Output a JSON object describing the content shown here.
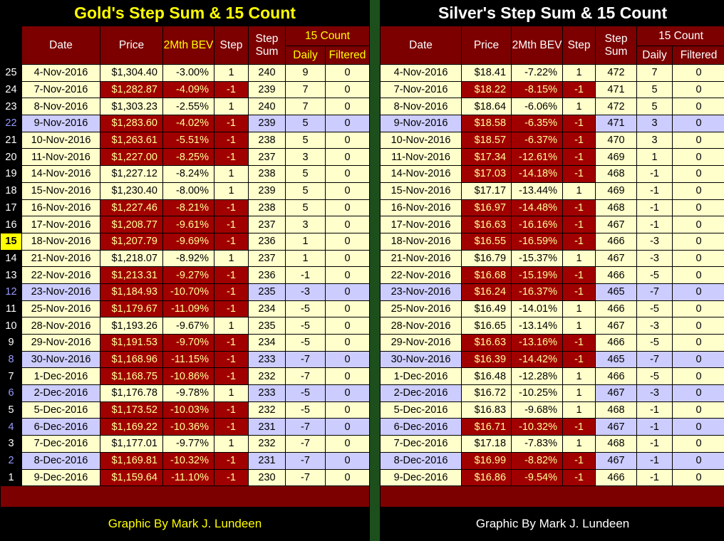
{
  "colors": {
    "background": "#000000",
    "header_red": "#7C0000",
    "down_cell_red": "#A00000",
    "down_cell_text": "#FFFF99",
    "row_cream": "#FFFFCC",
    "row_blue": "#CCCCFF",
    "gold_accent": "#FFFF00",
    "silver_text": "#FFFFFF",
    "divider_green": "#1C4F1C",
    "row_number_blue": "#9999FF",
    "highlight_yellow": "#FFFF00"
  },
  "header_labels": {
    "date": "Date",
    "price": "Price",
    "bev": "2Mth BEV",
    "step": "Step",
    "sum": "Step Sum",
    "count15": "15 Count",
    "daily": "Daily",
    "filtered": "Filtered"
  },
  "chart_data": [
    {
      "type": "table",
      "title": "Gold's Step Sum & 15 Count",
      "credit": "Graphic By Mark J. Lundeen",
      "columns": [
        "Row #",
        "Date",
        "Price",
        "2Mth BEV",
        "Step",
        "Step Sum",
        "15 Count Daily",
        "15 Count Filtered"
      ],
      "highlighted_row_number": "15",
      "rows": [
        {
          "n": "25",
          "date": "4-Nov-2016",
          "price": "$1,304.40",
          "bev": "-3.00%",
          "step": "1",
          "sum": "240",
          "daily": "9",
          "filtered": "0"
        },
        {
          "n": "24",
          "date": "7-Nov-2016",
          "price": "$1,282.87",
          "bev": "-4.09%",
          "step": "-1",
          "sum": "239",
          "daily": "7",
          "filtered": "0"
        },
        {
          "n": "23",
          "date": "8-Nov-2016",
          "price": "$1,303.23",
          "bev": "-2.55%",
          "step": "1",
          "sum": "240",
          "daily": "7",
          "filtered": "0"
        },
        {
          "n": "22",
          "date": "9-Nov-2016",
          "price": "$1,283.60",
          "bev": "-4.02%",
          "step": "-1",
          "sum": "239",
          "daily": "5",
          "filtered": "0",
          "tint": "blue"
        },
        {
          "n": "21",
          "date": "10-Nov-2016",
          "price": "$1,263.61",
          "bev": "-5.51%",
          "step": "-1",
          "sum": "238",
          "daily": "5",
          "filtered": "0"
        },
        {
          "n": "20",
          "date": "11-Nov-2016",
          "price": "$1,227.00",
          "bev": "-8.25%",
          "step": "-1",
          "sum": "237",
          "daily": "3",
          "filtered": "0"
        },
        {
          "n": "19",
          "date": "14-Nov-2016",
          "price": "$1,227.12",
          "bev": "-8.24%",
          "step": "1",
          "sum": "238",
          "daily": "5",
          "filtered": "0"
        },
        {
          "n": "18",
          "date": "15-Nov-2016",
          "price": "$1,230.40",
          "bev": "-8.00%",
          "step": "1",
          "sum": "239",
          "daily": "5",
          "filtered": "0"
        },
        {
          "n": "17",
          "date": "16-Nov-2016",
          "price": "$1,227.46",
          "bev": "-8.21%",
          "step": "-1",
          "sum": "238",
          "daily": "5",
          "filtered": "0"
        },
        {
          "n": "16",
          "date": "17-Nov-2016",
          "price": "$1,208.77",
          "bev": "-9.61%",
          "step": "-1",
          "sum": "237",
          "daily": "3",
          "filtered": "0"
        },
        {
          "n": "15",
          "date": "18-Nov-2016",
          "price": "$1,207.79",
          "bev": "-9.69%",
          "step": "-1",
          "sum": "236",
          "daily": "1",
          "filtered": "0"
        },
        {
          "n": "14",
          "date": "21-Nov-2016",
          "price": "$1,218.07",
          "bev": "-8.92%",
          "step": "1",
          "sum": "237",
          "daily": "1",
          "filtered": "0"
        },
        {
          "n": "13",
          "date": "22-Nov-2016",
          "price": "$1,213.31",
          "bev": "-9.27%",
          "step": "-1",
          "sum": "236",
          "daily": "-1",
          "filtered": "0"
        },
        {
          "n": "12",
          "date": "23-Nov-2016",
          "price": "$1,184.93",
          "bev": "-10.70%",
          "step": "-1",
          "sum": "235",
          "daily": "-3",
          "filtered": "0",
          "tint": "blue"
        },
        {
          "n": "11",
          "date": "25-Nov-2016",
          "price": "$1,179.67",
          "bev": "-11.09%",
          "step": "-1",
          "sum": "234",
          "daily": "-5",
          "filtered": "0"
        },
        {
          "n": "10",
          "date": "28-Nov-2016",
          "price": "$1,193.26",
          "bev": "-9.67%",
          "step": "1",
          "sum": "235",
          "daily": "-5",
          "filtered": "0"
        },
        {
          "n": "9",
          "date": "29-Nov-2016",
          "price": "$1,191.53",
          "bev": "-9.70%",
          "step": "-1",
          "sum": "234",
          "daily": "-5",
          "filtered": "0"
        },
        {
          "n": "8",
          "date": "30-Nov-2016",
          "price": "$1,168.96",
          "bev": "-11.15%",
          "step": "-1",
          "sum": "233",
          "daily": "-7",
          "filtered": "0",
          "tint": "blue"
        },
        {
          "n": "7",
          "date": "1-Dec-2016",
          "price": "$1,168.75",
          "bev": "-10.86%",
          "step": "-1",
          "sum": "232",
          "daily": "-7",
          "filtered": "0"
        },
        {
          "n": "6",
          "date": "2-Dec-2016",
          "price": "$1,176.78",
          "bev": "-9.78%",
          "step": "1",
          "sum": "233",
          "daily": "-5",
          "filtered": "0",
          "tint": "blue"
        },
        {
          "n": "5",
          "date": "5-Dec-2016",
          "price": "$1,173.52",
          "bev": "-10.03%",
          "step": "-1",
          "sum": "232",
          "daily": "-5",
          "filtered": "0"
        },
        {
          "n": "4",
          "date": "6-Dec-2016",
          "price": "$1,169.22",
          "bev": "-10.36%",
          "step": "-1",
          "sum": "231",
          "daily": "-7",
          "filtered": "0",
          "tint": "blue"
        },
        {
          "n": "3",
          "date": "7-Dec-2016",
          "price": "$1,177.01",
          "bev": "-9.77%",
          "step": "1",
          "sum": "232",
          "daily": "-7",
          "filtered": "0"
        },
        {
          "n": "2",
          "date": "8-Dec-2016",
          "price": "$1,169.81",
          "bev": "-10.32%",
          "step": "-1",
          "sum": "231",
          "daily": "-7",
          "filtered": "0",
          "tint": "blue"
        },
        {
          "n": "1",
          "date": "9-Dec-2016",
          "price": "$1,159.64",
          "bev": "-11.10%",
          "step": "-1",
          "sum": "230",
          "daily": "-7",
          "filtered": "0"
        }
      ]
    },
    {
      "type": "table",
      "title": "Silver's Step Sum & 15 Count",
      "credit": "Graphic By Mark J. Lundeen",
      "columns": [
        "Date",
        "Price",
        "2Mth BEV",
        "Step",
        "Step Sum",
        "15 Count Daily",
        "15 Count Filtered"
      ],
      "rows": [
        {
          "date": "4-Nov-2016",
          "price": "$18.41",
          "bev": "-7.22%",
          "step": "1",
          "sum": "472",
          "daily": "7",
          "filtered": "0"
        },
        {
          "date": "7-Nov-2016",
          "price": "$18.22",
          "bev": "-8.15%",
          "step": "-1",
          "sum": "471",
          "daily": "5",
          "filtered": "0"
        },
        {
          "date": "8-Nov-2016",
          "price": "$18.64",
          "bev": "-6.06%",
          "step": "1",
          "sum": "472",
          "daily": "5",
          "filtered": "0"
        },
        {
          "date": "9-Nov-2016",
          "price": "$18.58",
          "bev": "-6.35%",
          "step": "-1",
          "sum": "471",
          "daily": "3",
          "filtered": "0",
          "tint": "blue"
        },
        {
          "date": "10-Nov-2016",
          "price": "$18.57",
          "bev": "-6.37%",
          "step": "-1",
          "sum": "470",
          "daily": "3",
          "filtered": "0"
        },
        {
          "date": "11-Nov-2016",
          "price": "$17.34",
          "bev": "-12.61%",
          "step": "-1",
          "sum": "469",
          "daily": "1",
          "filtered": "0"
        },
        {
          "date": "14-Nov-2016",
          "price": "$17.03",
          "bev": "-14.18%",
          "step": "-1",
          "sum": "468",
          "daily": "-1",
          "filtered": "0"
        },
        {
          "date": "15-Nov-2016",
          "price": "$17.17",
          "bev": "-13.44%",
          "step": "1",
          "sum": "469",
          "daily": "-1",
          "filtered": "0"
        },
        {
          "date": "16-Nov-2016",
          "price": "$16.97",
          "bev": "-14.48%",
          "step": "-1",
          "sum": "468",
          "daily": "-1",
          "filtered": "0"
        },
        {
          "date": "17-Nov-2016",
          "price": "$16.63",
          "bev": "-16.16%",
          "step": "-1",
          "sum": "467",
          "daily": "-1",
          "filtered": "0"
        },
        {
          "date": "18-Nov-2016",
          "price": "$16.55",
          "bev": "-16.59%",
          "step": "-1",
          "sum": "466",
          "daily": "-3",
          "filtered": "0"
        },
        {
          "date": "21-Nov-2016",
          "price": "$16.79",
          "bev": "-15.37%",
          "step": "1",
          "sum": "467",
          "daily": "-3",
          "filtered": "0"
        },
        {
          "date": "22-Nov-2016",
          "price": "$16.68",
          "bev": "-15.19%",
          "step": "-1",
          "sum": "466",
          "daily": "-5",
          "filtered": "0"
        },
        {
          "date": "23-Nov-2016",
          "price": "$16.24",
          "bev": "-16.37%",
          "step": "-1",
          "sum": "465",
          "daily": "-7",
          "filtered": "0",
          "tint": "blue"
        },
        {
          "date": "25-Nov-2016",
          "price": "$16.49",
          "bev": "-14.01%",
          "step": "1",
          "sum": "466",
          "daily": "-5",
          "filtered": "0"
        },
        {
          "date": "28-Nov-2016",
          "price": "$16.65",
          "bev": "-13.14%",
          "step": "1",
          "sum": "467",
          "daily": "-3",
          "filtered": "0"
        },
        {
          "date": "29-Nov-2016",
          "price": "$16.63",
          "bev": "-13.16%",
          "step": "-1",
          "sum": "466",
          "daily": "-5",
          "filtered": "0"
        },
        {
          "date": "30-Nov-2016",
          "price": "$16.39",
          "bev": "-14.42%",
          "step": "-1",
          "sum": "465",
          "daily": "-7",
          "filtered": "0",
          "tint": "blue"
        },
        {
          "date": "1-Dec-2016",
          "price": "$16.48",
          "bev": "-12.28%",
          "step": "1",
          "sum": "466",
          "daily": "-5",
          "filtered": "0"
        },
        {
          "date": "2-Dec-2016",
          "price": "$16.72",
          "bev": "-10.25%",
          "step": "1",
          "sum": "467",
          "daily": "-3",
          "filtered": "0",
          "tint": "blue"
        },
        {
          "date": "5-Dec-2016",
          "price": "$16.83",
          "bev": "-9.68%",
          "step": "1",
          "sum": "468",
          "daily": "-1",
          "filtered": "0"
        },
        {
          "date": "6-Dec-2016",
          "price": "$16.71",
          "bev": "-10.32%",
          "step": "-1",
          "sum": "467",
          "daily": "-1",
          "filtered": "0",
          "tint": "blue"
        },
        {
          "date": "7-Dec-2016",
          "price": "$17.18",
          "bev": "-7.83%",
          "step": "1",
          "sum": "468",
          "daily": "-1",
          "filtered": "0"
        },
        {
          "date": "8-Dec-2016",
          "price": "$16.99",
          "bev": "-8.82%",
          "step": "-1",
          "sum": "467",
          "daily": "-1",
          "filtered": "0",
          "tint": "blue"
        },
        {
          "date": "9-Dec-2016",
          "price": "$16.86",
          "bev": "-9.54%",
          "step": "-1",
          "sum": "466",
          "daily": "-1",
          "filtered": "0"
        }
      ]
    }
  ]
}
